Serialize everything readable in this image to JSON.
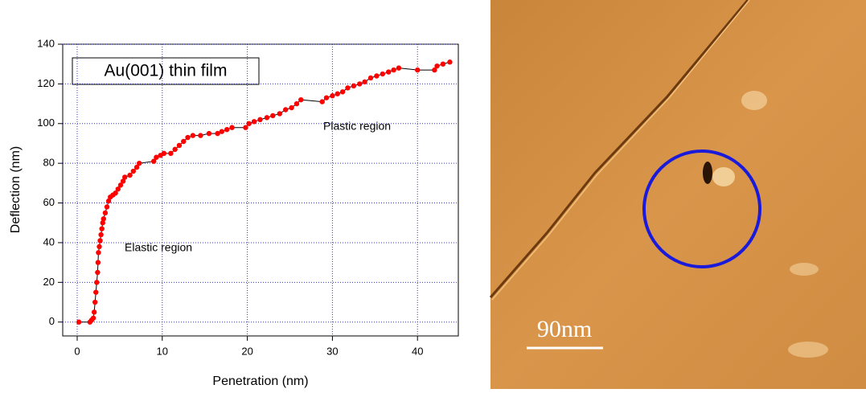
{
  "chart_data": {
    "type": "line",
    "x_label": "Penetration (nm)",
    "y_label": "Deflection (nm)",
    "annotations": [
      "Au(001) thin film",
      "Elastic region",
      "Plastic region"
    ],
    "x": [
      0.2,
      1.5,
      1.7,
      1.9,
      2.0,
      2.1,
      2.2,
      2.3,
      2.4,
      2.45,
      2.5,
      2.6,
      2.7,
      2.8,
      2.9,
      3.0,
      3.1,
      3.3,
      3.5,
      3.7,
      3.9,
      4.2,
      4.5,
      4.8,
      5.1,
      5.4,
      5.6,
      6.2,
      6.6,
      7.0,
      7.3,
      9.0,
      9.3,
      9.8,
      10.2,
      11.0,
      11.5,
      12.0,
      12.5,
      13.0,
      13.6,
      14.5,
      15.5,
      16.5,
      17.0,
      17.6,
      18.2,
      19.8,
      20.2,
      20.8,
      21.5,
      22.3,
      23.0,
      23.8,
      24.5,
      25.2,
      25.8,
      26.3,
      28.8,
      29.3,
      30.0,
      30.6,
      31.2,
      31.8,
      32.5,
      33.2,
      33.8,
      34.5,
      35.2,
      35.9,
      36.6,
      37.2,
      37.8,
      40.0,
      42.0,
      42.3,
      43.0,
      43.8
    ],
    "values": [
      0,
      0,
      1,
      2,
      5,
      10,
      15,
      20,
      25,
      30,
      35,
      38,
      41,
      44,
      47,
      50,
      52,
      55,
      58,
      61,
      63,
      64,
      65,
      67,
      69,
      71,
      73,
      74,
      76,
      78,
      80,
      81,
      83,
      84,
      85,
      85,
      87,
      89,
      91,
      93,
      94,
      94,
      95,
      95,
      96,
      97,
      98,
      98,
      100,
      101,
      102,
      103,
      104,
      105,
      107,
      108,
      110,
      112,
      111,
      113,
      114,
      115,
      116,
      118,
      119,
      120,
      121,
      123,
      124,
      125,
      126,
      127,
      128,
      127,
      127,
      129,
      130,
      131
    ],
    "marker_color": "#ff0000",
    "line_color": "#000000",
    "xlim": [
      -1.7,
      44.8
    ],
    "xticks": [
      0,
      10,
      20,
      30,
      40
    ],
    "ylim": [
      -7,
      140
    ],
    "yticks": [
      0,
      20,
      40,
      60,
      80,
      100,
      120,
      140
    ],
    "grid": true,
    "grid_color": "#3333cc"
  },
  "afm_image": {
    "scale_label": "90nm"
  }
}
